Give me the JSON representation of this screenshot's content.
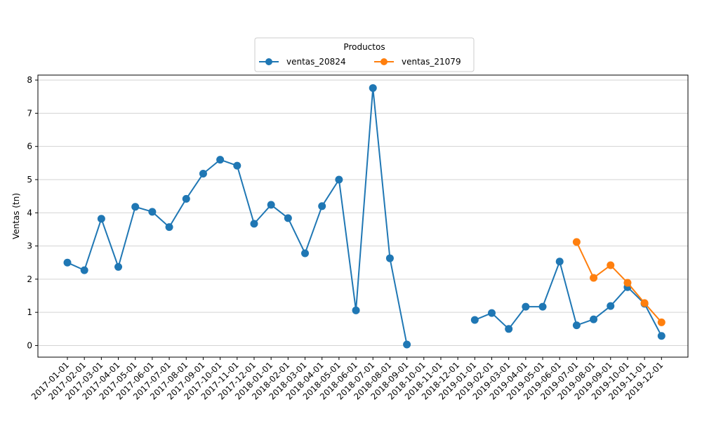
{
  "chart_data": {
    "type": "line",
    "ylabel": "Ventas (tn)",
    "xlabel": "",
    "ylim": [
      -0.35,
      8.15
    ],
    "y_ticks": [
      0,
      1,
      2,
      3,
      4,
      5,
      6,
      7,
      8
    ],
    "grid": "horizontal",
    "legend": {
      "title": "Productos",
      "placement": "top-center"
    },
    "categories": [
      "2017-01-01",
      "2017-02-01",
      "2017-03-01",
      "2017-04-01",
      "2017-05-01",
      "2017-06-01",
      "2017-07-01",
      "2017-08-01",
      "2017-09-01",
      "2017-10-01",
      "2017-11-01",
      "2017-12-01",
      "2018-01-01",
      "2018-02-01",
      "2018-03-01",
      "2018-04-01",
      "2018-05-01",
      "2018-06-01",
      "2018-07-01",
      "2018-08-01",
      "2018-09-01",
      "2018-10-01",
      "2018-11-01",
      "2018-12-01",
      "2019-01-01",
      "2019-02-01",
      "2019-03-01",
      "2019-04-01",
      "2019-05-01",
      "2019-06-01",
      "2019-07-01",
      "2019-08-01",
      "2019-09-01",
      "2019-10-01",
      "2019-11-01",
      "2019-12-01"
    ],
    "series": [
      {
        "name": "ventas_20824",
        "color": "#1f77b4",
        "values": [
          2.5,
          2.27,
          3.82,
          2.37,
          4.18,
          4.03,
          3.57,
          4.42,
          5.18,
          5.6,
          5.42,
          3.67,
          4.24,
          3.84,
          2.78,
          4.2,
          5.0,
          1.06,
          7.76,
          2.63,
          0.03,
          null,
          null,
          null,
          0.77,
          0.98,
          0.5,
          1.17,
          1.17,
          2.53,
          0.61,
          0.79,
          1.19,
          1.76,
          1.26,
          0.29
        ]
      },
      {
        "name": "ventas_21079",
        "color": "#ff7f0e",
        "values": [
          null,
          null,
          null,
          null,
          null,
          null,
          null,
          null,
          null,
          null,
          null,
          null,
          null,
          null,
          null,
          null,
          null,
          null,
          null,
          null,
          null,
          null,
          null,
          null,
          null,
          null,
          null,
          null,
          null,
          null,
          3.12,
          2.04,
          2.42,
          1.89,
          1.28,
          0.7
        ]
      }
    ]
  }
}
